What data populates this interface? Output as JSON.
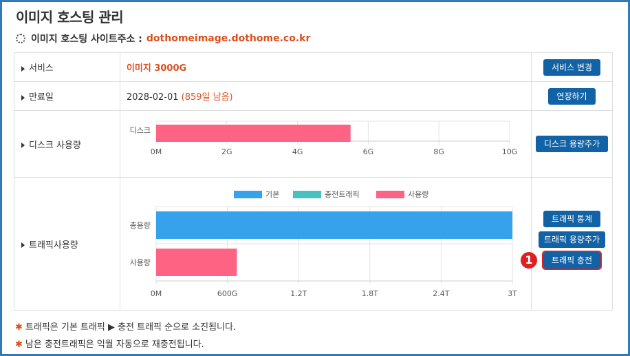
{
  "page": {
    "title": "이미지 호스팅 관리",
    "site_label": "이미지 호스팅 사이트주소 :",
    "site_url": "dothomeimage.dothome.co.kr"
  },
  "rows": {
    "service": {
      "label": "서비스",
      "value": "이미지 3000G",
      "button": "서비스 변경"
    },
    "expiry": {
      "label": "만료일",
      "date": "2028-02-01",
      "remaining": "(859일 남음)",
      "button": "연장하기"
    },
    "disk": {
      "label": "디스크 사용량",
      "button": "디스크 용량추가"
    },
    "traffic": {
      "label": "트래픽사용량",
      "buttons": {
        "stats": "트래픽 통계",
        "add": "트래픽 용량추가",
        "charge": "트래픽 충전"
      }
    }
  },
  "callout": {
    "number": "1"
  },
  "chart_data": [
    {
      "type": "bar",
      "orientation": "horizontal",
      "categories": [
        "디스크"
      ],
      "values": [
        5.5
      ],
      "x_ticks": [
        "0M",
        "2G",
        "4G",
        "6G",
        "8G",
        "10G"
      ],
      "xlim": [
        0,
        10
      ],
      "color": "#ff6384"
    },
    {
      "type": "bar",
      "orientation": "horizontal",
      "legend": [
        {
          "name": "기본",
          "color": "#36a2eb"
        },
        {
          "name": "충전트래픽",
          "color": "#4bc0c0"
        },
        {
          "name": "사용량",
          "color": "#ff6384"
        }
      ],
      "categories": [
        "총용량",
        "사용량"
      ],
      "values": [
        3.0,
        0.68
      ],
      "bar_colors": [
        "#36a2eb",
        "#ff6384"
      ],
      "x_ticks": [
        "0M",
        "600G",
        "1.2T",
        "1.8T",
        "2.4T",
        "3T"
      ],
      "xlim": [
        0,
        3
      ]
    }
  ],
  "footnotes": [
    "트래픽은 기본 트래픽 ▶ 충전 트래픽 순으로 소진됩니다.",
    "남은 충전트래픽은 익월 자동으로 재충전됩니다."
  ]
}
